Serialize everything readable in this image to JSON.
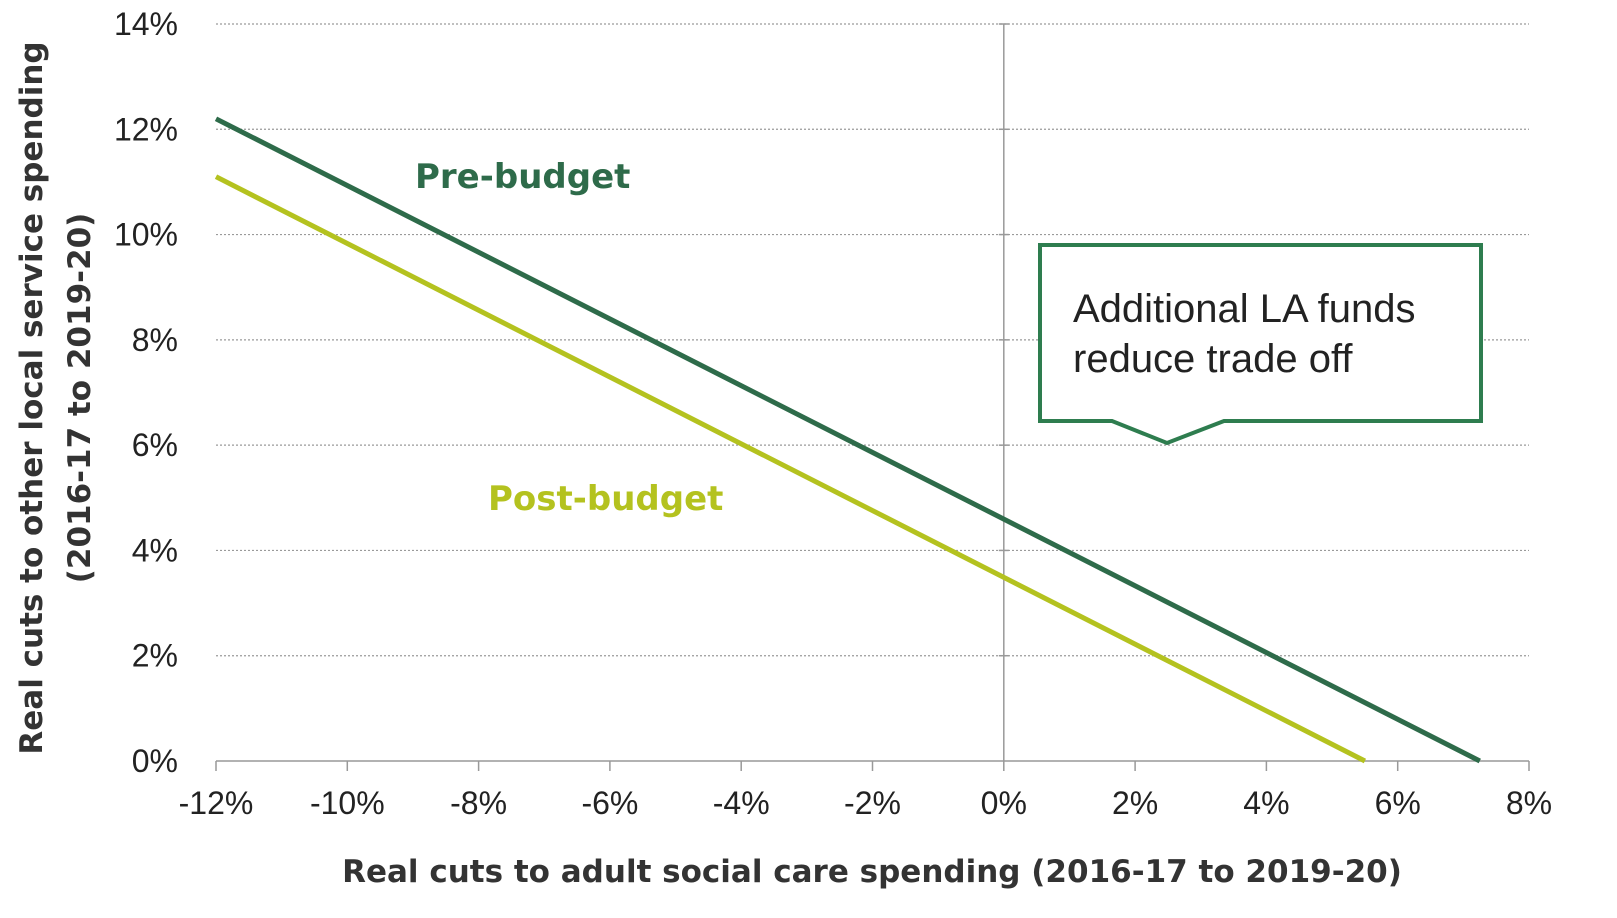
{
  "chart_data": {
    "type": "line",
    "xlabel": "Real cuts to adult social care spending (2016-17 to 2019-20)",
    "ylabel_line1": "Real cuts to other local service spending",
    "ylabel_line2": "(2016-17 to 2019-20)",
    "xlim": [
      -12,
      8
    ],
    "ylim": [
      0,
      14
    ],
    "x_ticks": [
      -12,
      -10,
      -8,
      -6,
      -4,
      -2,
      0,
      2,
      4,
      6,
      8
    ],
    "y_ticks": [
      0,
      2,
      4,
      6,
      8,
      10,
      12,
      14
    ],
    "x_tick_labels": [
      "-12%",
      "-10%",
      "-8%",
      "-6%",
      "-4%",
      "-2%",
      "0%",
      "2%",
      "4%",
      "6%",
      "8%"
    ],
    "y_tick_labels": [
      "0%",
      "2%",
      "4%",
      "6%",
      "8%",
      "10%",
      "12%",
      "14%"
    ],
    "grid": "horizontal dotted",
    "series": [
      {
        "name": "Pre-budget",
        "color": "#2e6b4a",
        "x": [
          -12,
          7.25
        ],
        "y": [
          12.2,
          0
        ]
      },
      {
        "name": "Post-budget",
        "color": "#b4c21f",
        "x": [
          -12,
          5.5
        ],
        "y": [
          11.1,
          0
        ]
      }
    ],
    "annotation": {
      "line1": "Additional LA funds",
      "line2": "reduce trade off",
      "border_color": "#2e7d4f"
    }
  }
}
